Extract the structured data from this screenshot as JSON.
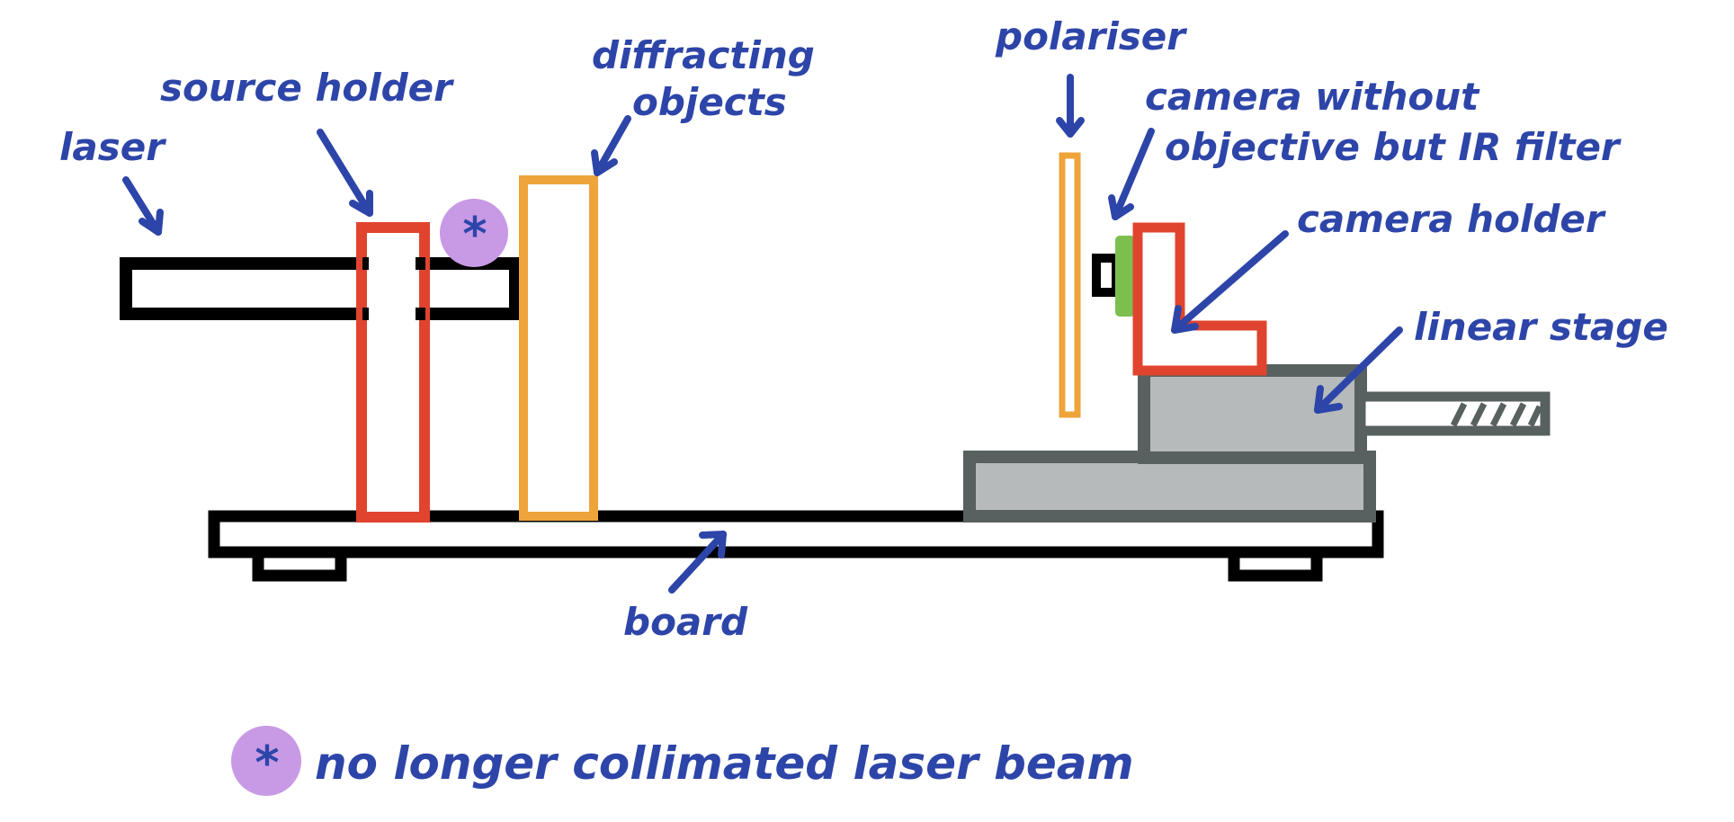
{
  "labels": {
    "laser": "laser",
    "source_holder": "source holder",
    "diffracting_objects_line1": "diffracting",
    "diffracting_objects_line2": "objects",
    "polariser": "polariser",
    "camera_line1": "camera without",
    "camera_line2": "objective but IR filter",
    "camera_holder": "camera holder",
    "linear_stage": "linear stage",
    "board": "board"
  },
  "note": {
    "symbol": "*",
    "text": "no longer collimated laser beam"
  },
  "colors": {
    "ink": "#2d45a8",
    "black": "#000000",
    "red": "#e0442f",
    "orange": "#eea43b",
    "green": "#7cbf4f",
    "purple": "#c89ae6",
    "stage_outline": "#586160",
    "stage_fill": "#b6babb"
  }
}
